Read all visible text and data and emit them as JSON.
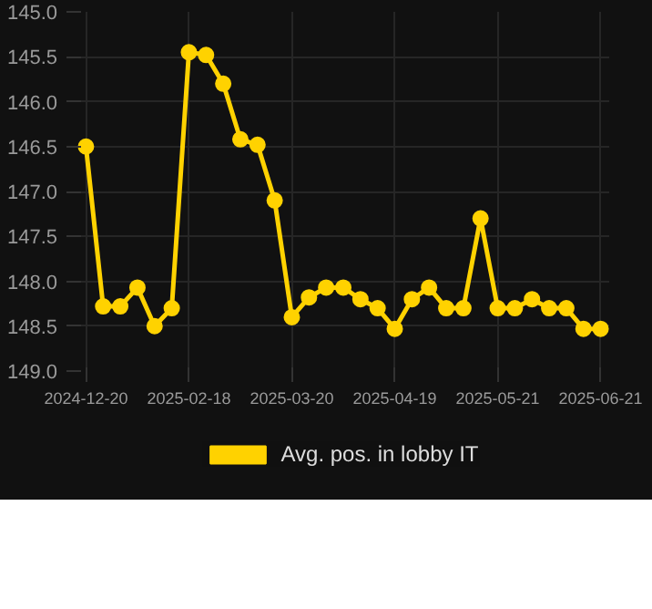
{
  "chart_data": {
    "type": "line",
    "categories": [
      "2024-12-20",
      null,
      null,
      null,
      null,
      null,
      "2025-02-18",
      null,
      null,
      null,
      null,
      null,
      "2025-03-20",
      null,
      null,
      null,
      null,
      null,
      "2025-04-19",
      null,
      null,
      null,
      null,
      null,
      "2025-05-21",
      null,
      null,
      null,
      null,
      null,
      "2025-06-21"
    ],
    "series": [
      {
        "name": "Avg. pos. in lobby IT",
        "color": "#ffd200",
        "values": [
          146.5,
          148.28,
          148.28,
          148.07,
          148.5,
          148.3,
          145.45,
          145.48,
          145.8,
          146.42,
          146.48,
          147.1,
          148.4,
          148.18,
          148.07,
          148.07,
          148.2,
          148.3,
          148.53,
          148.2,
          148.07,
          148.3,
          148.3,
          147.3,
          148.3,
          148.3,
          148.2,
          148.3,
          148.3,
          148.53,
          148.53
        ]
      }
    ],
    "ylim": [
      149.0,
      145.0
    ],
    "yticks": [
      {
        "value": 145,
        "label": "145.0"
      },
      {
        "value": 145.5,
        "label": "145.5"
      },
      {
        "value": 146,
        "label": "146.0"
      },
      {
        "value": 146.5,
        "label": "146.5"
      },
      {
        "value": 147,
        "label": "147.0"
      },
      {
        "value": 147.5,
        "label": "147.5"
      },
      {
        "value": 148,
        "label": "148.0"
      },
      {
        "value": 148.5,
        "label": "148.5"
      },
      {
        "value": 149,
        "label": "149.0"
      }
    ],
    "grid": true,
    "legend": "bottom",
    "marker": "circle",
    "line_style": "solid"
  }
}
